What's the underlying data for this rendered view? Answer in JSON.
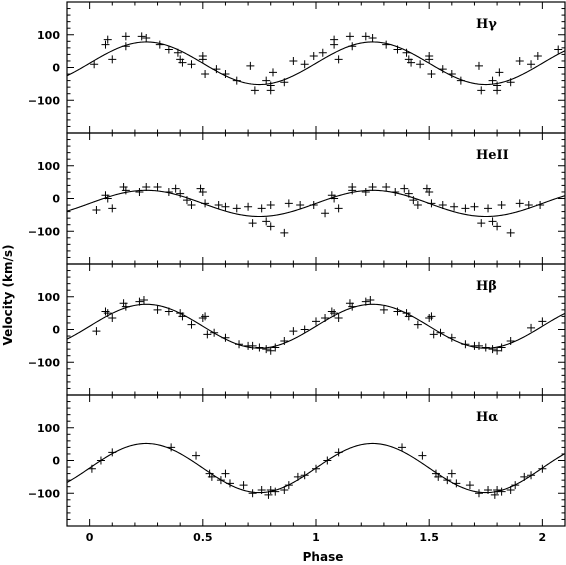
{
  "chart_data": {
    "type": "scatter",
    "xlabel": "Phase",
    "ylabel": "Velocity (km/s)",
    "xlim": [
      -0.1,
      2.1
    ],
    "x_ticks": [
      0,
      0.5,
      1,
      1.5,
      2
    ],
    "x_tick_labels": [
      "0",
      "0.5",
      "1",
      "1.5",
      "2"
    ],
    "y_ticks": [
      -100,
      0,
      100
    ],
    "y_tick_labels": [
      "−100",
      "0",
      "100"
    ],
    "marker": "plus",
    "color": "#000000",
    "panels": [
      {
        "label": "Hγ",
        "ylim": [
          -200,
          200
        ],
        "model": {
          "gamma": 13,
          "K": 65,
          "phase_of_max": 0.25
        },
        "points": [
          [
            0.02,
            10
          ],
          [
            0.07,
            70
          ],
          [
            0.08,
            85
          ],
          [
            0.1,
            25
          ],
          [
            0.16,
            95
          ],
          [
            0.16,
            65
          ],
          [
            0.23,
            95
          ],
          [
            0.25,
            90
          ],
          [
            0.31,
            70
          ],
          [
            0.35,
            55
          ],
          [
            0.39,
            45
          ],
          [
            0.4,
            25
          ],
          [
            0.41,
            15
          ],
          [
            0.45,
            10
          ],
          [
            0.5,
            25
          ],
          [
            0.5,
            35
          ],
          [
            0.51,
            -20
          ],
          [
            0.56,
            -5
          ],
          [
            0.6,
            -20
          ],
          [
            0.65,
            -40
          ],
          [
            0.71,
            5
          ],
          [
            0.73,
            -70
          ],
          [
            0.78,
            -40
          ],
          [
            0.8,
            -55
          ],
          [
            0.8,
            -70
          ],
          [
            0.81,
            -15
          ],
          [
            0.86,
            -45
          ],
          [
            0.9,
            20
          ],
          [
            0.95,
            10
          ],
          [
            0.99,
            35
          ],
          [
            1.03,
            45
          ],
          [
            1.08,
            70
          ],
          [
            1.08,
            85
          ],
          [
            1.1,
            25
          ],
          [
            1.15,
            95
          ],
          [
            1.16,
            65
          ],
          [
            1.22,
            95
          ],
          [
            1.25,
            90
          ],
          [
            1.31,
            70
          ],
          [
            1.36,
            55
          ],
          [
            1.4,
            45
          ],
          [
            1.41,
            25
          ],
          [
            1.42,
            15
          ],
          [
            1.46,
            10
          ],
          [
            1.5,
            25
          ],
          [
            1.5,
            35
          ],
          [
            1.51,
            -20
          ],
          [
            1.56,
            -5
          ],
          [
            1.6,
            -20
          ],
          [
            1.64,
            -40
          ],
          [
            1.72,
            5
          ],
          [
            1.73,
            -70
          ],
          [
            1.78,
            -40
          ],
          [
            1.8,
            -55
          ],
          [
            1.8,
            -70
          ],
          [
            1.81,
            -15
          ],
          [
            1.86,
            -45
          ],
          [
            1.9,
            20
          ],
          [
            1.95,
            10
          ],
          [
            1.98,
            35
          ],
          [
            2.07,
            55
          ]
        ]
      },
      {
        "label": "HeII",
        "ylim": [
          -200,
          200
        ],
        "model": {
          "gamma": -15,
          "K": 40,
          "phase_of_max": 0.25
        },
        "points": [
          [
            0.03,
            -35
          ],
          [
            0.07,
            10
          ],
          [
            0.08,
            0
          ],
          [
            0.1,
            -30
          ],
          [
            0.15,
            35
          ],
          [
            0.16,
            25
          ],
          [
            0.22,
            20
          ],
          [
            0.25,
            35
          ],
          [
            0.3,
            35
          ],
          [
            0.35,
            20
          ],
          [
            0.38,
            30
          ],
          [
            0.4,
            15
          ],
          [
            0.43,
            -5
          ],
          [
            0.45,
            -20
          ],
          [
            0.49,
            30
          ],
          [
            0.5,
            20
          ],
          [
            0.51,
            -15
          ],
          [
            0.57,
            -20
          ],
          [
            0.6,
            -25
          ],
          [
            0.65,
            -30
          ],
          [
            0.7,
            -25
          ],
          [
            0.72,
            -75
          ],
          [
            0.76,
            -30
          ],
          [
            0.78,
            -70
          ],
          [
            0.8,
            -85
          ],
          [
            0.8,
            -20
          ],
          [
            0.86,
            -105
          ],
          [
            0.88,
            -15
          ],
          [
            0.93,
            -20
          ],
          [
            0.99,
            -20
          ],
          [
            1.04,
            -45
          ],
          [
            1.07,
            10
          ],
          [
            1.08,
            0
          ],
          [
            1.1,
            -30
          ],
          [
            1.16,
            35
          ],
          [
            1.16,
            25
          ],
          [
            1.22,
            20
          ],
          [
            1.25,
            35
          ],
          [
            1.31,
            35
          ],
          [
            1.35,
            20
          ],
          [
            1.39,
            30
          ],
          [
            1.41,
            15
          ],
          [
            1.43,
            -5
          ],
          [
            1.45,
            -20
          ],
          [
            1.49,
            30
          ],
          [
            1.5,
            20
          ],
          [
            1.51,
            -15
          ],
          [
            1.56,
            -20
          ],
          [
            1.61,
            -25
          ],
          [
            1.66,
            -30
          ],
          [
            1.7,
            -25
          ],
          [
            1.73,
            -75
          ],
          [
            1.76,
            -30
          ],
          [
            1.78,
            -70
          ],
          [
            1.8,
            -85
          ],
          [
            1.82,
            -20
          ],
          [
            1.86,
            -105
          ],
          [
            1.9,
            -15
          ],
          [
            1.94,
            -20
          ],
          [
            1.99,
            -20
          ]
        ]
      },
      {
        "label": "Hβ",
        "ylim": [
          -200,
          200
        ],
        "model": {
          "gamma": 10,
          "K": 67,
          "phase_of_max": 0.25
        },
        "points": [
          [
            0.03,
            -5
          ],
          [
            0.07,
            55
          ],
          [
            0.08,
            50
          ],
          [
            0.1,
            35
          ],
          [
            0.15,
            80
          ],
          [
            0.16,
            70
          ],
          [
            0.22,
            85
          ],
          [
            0.24,
            90
          ],
          [
            0.3,
            60
          ],
          [
            0.35,
            55
          ],
          [
            0.4,
            50
          ],
          [
            0.41,
            40
          ],
          [
            0.45,
            15
          ],
          [
            0.5,
            35
          ],
          [
            0.51,
            40
          ],
          [
            0.52,
            -15
          ],
          [
            0.55,
            -10
          ],
          [
            0.6,
            -25
          ],
          [
            0.66,
            -45
          ],
          [
            0.7,
            -50
          ],
          [
            0.72,
            -50
          ],
          [
            0.75,
            -55
          ],
          [
            0.78,
            -60
          ],
          [
            0.8,
            -65
          ],
          [
            0.82,
            -55
          ],
          [
            0.86,
            -35
          ],
          [
            0.9,
            -5
          ],
          [
            0.95,
            0
          ],
          [
            1.0,
            25
          ],
          [
            1.04,
            35
          ],
          [
            1.07,
            55
          ],
          [
            1.08,
            50
          ],
          [
            1.1,
            35
          ],
          [
            1.15,
            80
          ],
          [
            1.16,
            70
          ],
          [
            1.22,
            85
          ],
          [
            1.24,
            90
          ],
          [
            1.3,
            60
          ],
          [
            1.36,
            55
          ],
          [
            1.4,
            50
          ],
          [
            1.41,
            40
          ],
          [
            1.45,
            15
          ],
          [
            1.5,
            35
          ],
          [
            1.51,
            40
          ],
          [
            1.52,
            -15
          ],
          [
            1.55,
            -10
          ],
          [
            1.6,
            -25
          ],
          [
            1.66,
            -45
          ],
          [
            1.7,
            -50
          ],
          [
            1.72,
            -50
          ],
          [
            1.75,
            -55
          ],
          [
            1.78,
            -60
          ],
          [
            1.8,
            -65
          ],
          [
            1.82,
            -55
          ],
          [
            1.86,
            -35
          ],
          [
            1.95,
            5
          ],
          [
            2.0,
            25
          ]
        ]
      },
      {
        "label": "Hα",
        "ylim": [
          -200,
          200
        ],
        "model": {
          "gamma": -23,
          "K": 75,
          "phase_of_max": 0.25
        },
        "points": [
          [
            0.01,
            -25
          ],
          [
            0.05,
            0
          ],
          [
            0.1,
            25
          ],
          [
            0.36,
            40
          ],
          [
            0.47,
            15
          ],
          [
            0.53,
            -40
          ],
          [
            0.54,
            -50
          ],
          [
            0.58,
            -60
          ],
          [
            0.6,
            -40
          ],
          [
            0.62,
            -70
          ],
          [
            0.68,
            -75
          ],
          [
            0.72,
            -100
          ],
          [
            0.76,
            -90
          ],
          [
            0.79,
            -105
          ],
          [
            0.8,
            -90
          ],
          [
            0.82,
            -95
          ],
          [
            0.86,
            -90
          ],
          [
            0.88,
            -75
          ],
          [
            0.92,
            -50
          ],
          [
            0.95,
            -45
          ],
          [
            1.0,
            -25
          ],
          [
            1.05,
            0
          ],
          [
            1.1,
            25
          ],
          [
            1.38,
            40
          ],
          [
            1.47,
            15
          ],
          [
            1.53,
            -40
          ],
          [
            1.54,
            -50
          ],
          [
            1.58,
            -60
          ],
          [
            1.6,
            -40
          ],
          [
            1.62,
            -70
          ],
          [
            1.68,
            -75
          ],
          [
            1.72,
            -100
          ],
          [
            1.76,
            -90
          ],
          [
            1.79,
            -105
          ],
          [
            1.8,
            -90
          ],
          [
            1.82,
            -95
          ],
          [
            1.86,
            -90
          ],
          [
            1.88,
            -75
          ],
          [
            1.92,
            -50
          ],
          [
            1.95,
            -45
          ],
          [
            2.0,
            -25
          ]
        ]
      }
    ]
  }
}
